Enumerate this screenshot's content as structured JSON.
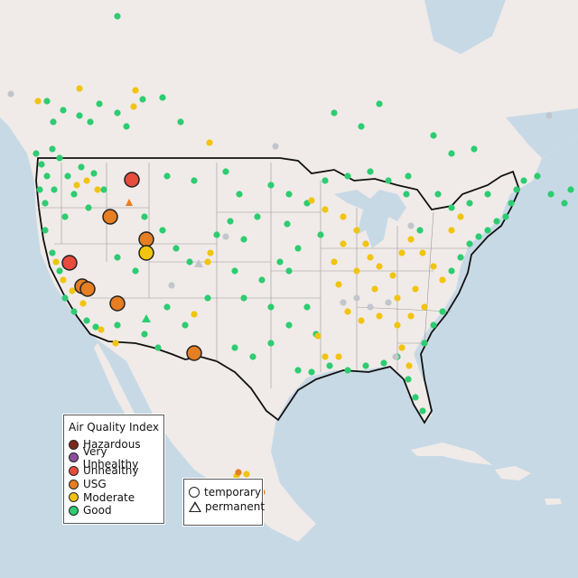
{
  "legend_aqi": {
    "title": "Air Quality Index",
    "items": [
      {
        "label": "Hazardous",
        "color": "#7e2a1a"
      },
      {
        "label": "Very Unhealthy",
        "color": "#8e4fa0"
      },
      {
        "label": "Unhealthy",
        "color": "#e74c3c"
      },
      {
        "label": "USG",
        "color": "#e67e22"
      },
      {
        "label": "Moderate",
        "color": "#f1c40f"
      },
      {
        "label": "Good",
        "color": "#2ecc71"
      }
    ]
  },
  "legend_type": {
    "items": [
      {
        "label": "temporary",
        "shape": "circle-icon"
      },
      {
        "label": "permanent",
        "shape": "triangle-icon"
      }
    ]
  },
  "colors": {
    "water": "#c8d9e6",
    "land": "#f2ecea",
    "us_land": "#efe9e6",
    "no_data": "#c2c6cc"
  }
}
